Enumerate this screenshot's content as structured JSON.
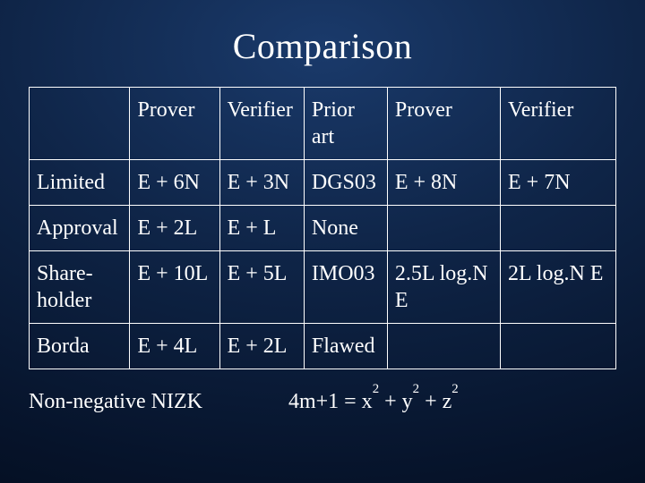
{
  "title": "Comparison",
  "columns": [
    "",
    "Prover",
    "Verifier",
    "Prior art",
    "Prover",
    "Verifier"
  ],
  "rows": [
    {
      "label": "Limited",
      "c1": "E + 6N",
      "c2": "E + 3N",
      "c3": "DGS03",
      "c4": "E + 8N",
      "c5": "E + 7N"
    },
    {
      "label": "Approval",
      "c1": "E + 2L",
      "c2": "E + L",
      "c3": "None",
      "c4": "",
      "c5": ""
    },
    {
      "label": "Share-\nholder",
      "c1": "E + 10L",
      "c2": "E + 5L",
      "c3": "IMO03",
      "c4": "2.5L log.N E",
      "c5": "2L log.N E"
    },
    {
      "label": "Borda",
      "c1": "E + 4L",
      "c2": "E + 2L",
      "c3": "Flawed",
      "c4": "",
      "c5": ""
    }
  ],
  "footer": {
    "left": "Non-negative NIZK",
    "right_html": "4m+1 = x<sup>2</sup> + y<sup>2</sup> + z<sup>2</sup>"
  },
  "colors": {
    "text": "#ffffff",
    "border": "#ffffff",
    "bg_center": "#1a3a6b",
    "bg_edge": "#06132a"
  },
  "fontsizes": {
    "title": 40,
    "cell": 24,
    "footer": 24
  }
}
